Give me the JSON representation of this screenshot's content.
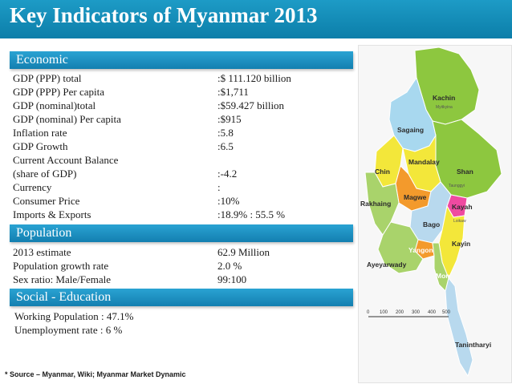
{
  "title": "Key Indicators of Myanmar 2013",
  "sections": {
    "economic": {
      "header": "Economic",
      "rows": [
        {
          "label": "GDP (PPP) total",
          "value": ":$ 111.120 billion"
        },
        {
          "label": "GDP (PPP) Per capita",
          "value": ":$1,711"
        },
        {
          "label": "GDP (nominal)total",
          "value": ":$59.427 billion"
        },
        {
          "label": "GDP (nominal) Per capita",
          "value": ":$915"
        },
        {
          "label": "Inflation rate",
          "value": ":5.8"
        },
        {
          "label": "GDP Growth",
          "value": ":6.5"
        },
        {
          "label": "Current Account Balance",
          "value": ""
        },
        {
          "label": "(share of GDP)",
          "value": ":-4.2"
        },
        {
          "label": "Currency",
          "value": ":"
        },
        {
          "label": "Consumer Price",
          "value": ":10%"
        },
        {
          "label": "Imports & Exports",
          "value": ":18.9% : 55.5 %"
        }
      ]
    },
    "population": {
      "header": "Population",
      "rows": [
        {
          "label": "2013 estimate",
          "value": "62.9 Million"
        },
        {
          "label": "Population growth rate",
          "value": "2.0 %"
        },
        {
          "label": "Sex ratio: Male/Female",
          "value": "99:100"
        }
      ]
    },
    "social": {
      "header": "Social - Education",
      "lines": [
        "Working Population  :  47.1%",
        "Unemployment rate  :  6 %"
      ]
    }
  },
  "source": "* Source – Myanmar, Wiki; Myanmar Market Dynamic",
  "map": {
    "regions": [
      {
        "name": "Kachin",
        "color": "#8dc73f"
      },
      {
        "name": "Sagaing",
        "color": "#a8d8ef"
      },
      {
        "name": "Shan",
        "color": "#8dc73f"
      },
      {
        "name": "Chin",
        "color": "#f3e73a"
      },
      {
        "name": "Mandalay",
        "color": "#f3e73a"
      },
      {
        "name": "Magwe",
        "color": "#f39a2c"
      },
      {
        "name": "Rakhaing",
        "color": "#a9d36b"
      },
      {
        "name": "Kayah",
        "color": "#ef4aa0"
      },
      {
        "name": "Bago",
        "color": "#b8d9ee"
      },
      {
        "name": "Kayin",
        "color": "#f3e73a"
      },
      {
        "name": "Yangon",
        "color": "#f39a2c"
      },
      {
        "name": "Ayeyarwady",
        "color": "#a9d36b"
      },
      {
        "name": "Mon",
        "color": "#a9d36b"
      },
      {
        "name": "Tanintharyi",
        "color": "#b8d9ee"
      }
    ],
    "cities": [
      "Myitkyina",
      "Taunggyi",
      "Loikaw"
    ],
    "scale": [
      "0",
      "100",
      "200",
      "300",
      "400",
      "500"
    ]
  }
}
